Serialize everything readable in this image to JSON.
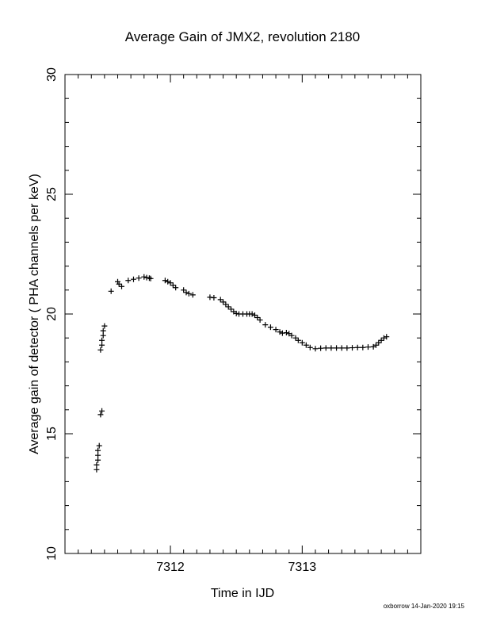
{
  "chart_data": {
    "type": "scatter",
    "title": "Average Gain of JMX2, revolution 2180",
    "xlabel": "Time in IJD",
    "ylabel": "Average gain of detector ( PHA channels per keV)",
    "xlim": [
      7311.2,
      7313.9
    ],
    "ylim": [
      10,
      30
    ],
    "x_ticks": [
      7312,
      7313
    ],
    "y_ticks": [
      10,
      15,
      20,
      25,
      30
    ],
    "marker": "+",
    "series": [
      {
        "points": [
          [
            7311.44,
            13.5
          ],
          [
            7311.44,
            13.7
          ],
          [
            7311.45,
            13.9
          ],
          [
            7311.45,
            14.1
          ],
          [
            7311.45,
            14.3
          ],
          [
            7311.46,
            14.5
          ],
          [
            7311.47,
            15.8
          ],
          [
            7311.48,
            15.95
          ],
          [
            7311.47,
            18.5
          ],
          [
            7311.48,
            18.7
          ],
          [
            7311.48,
            18.9
          ],
          [
            7311.49,
            19.1
          ],
          [
            7311.49,
            19.3
          ],
          [
            7311.5,
            19.5
          ],
          [
            7311.55,
            20.95
          ],
          [
            7311.6,
            21.35
          ],
          [
            7311.61,
            21.25
          ],
          [
            7311.63,
            21.15
          ],
          [
            7311.68,
            21.4
          ],
          [
            7311.72,
            21.45
          ],
          [
            7311.76,
            21.5
          ],
          [
            7311.8,
            21.55
          ],
          [
            7311.82,
            21.52
          ],
          [
            7311.84,
            21.5
          ],
          [
            7311.85,
            21.48
          ],
          [
            7311.96,
            21.4
          ],
          [
            7311.98,
            21.35
          ],
          [
            7312.0,
            21.3
          ],
          [
            7312.02,
            21.2
          ],
          [
            7312.04,
            21.1
          ],
          [
            7312.1,
            21.0
          ],
          [
            7312.12,
            20.9
          ],
          [
            7312.14,
            20.85
          ],
          [
            7312.17,
            20.8
          ],
          [
            7312.3,
            20.7
          ],
          [
            7312.33,
            20.68
          ],
          [
            7312.38,
            20.6
          ],
          [
            7312.4,
            20.5
          ],
          [
            7312.42,
            20.4
          ],
          [
            7312.44,
            20.3
          ],
          [
            7312.46,
            20.2
          ],
          [
            7312.48,
            20.1
          ],
          [
            7312.5,
            20.02
          ],
          [
            7312.52,
            20.0
          ],
          [
            7312.55,
            20.0
          ],
          [
            7312.58,
            20.0
          ],
          [
            7312.6,
            20.0
          ],
          [
            7312.62,
            20.0
          ],
          [
            7312.64,
            19.95
          ],
          [
            7312.66,
            19.85
          ],
          [
            7312.68,
            19.75
          ],
          [
            7312.72,
            19.55
          ],
          [
            7312.76,
            19.45
          ],
          [
            7312.8,
            19.35
          ],
          [
            7312.83,
            19.25
          ],
          [
            7312.85,
            19.2
          ],
          [
            7312.88,
            19.22
          ],
          [
            7312.9,
            19.18
          ],
          [
            7312.92,
            19.1
          ],
          [
            7312.95,
            19.0
          ],
          [
            7312.97,
            18.9
          ],
          [
            7313.0,
            18.8
          ],
          [
            7313.03,
            18.7
          ],
          [
            7313.06,
            18.6
          ],
          [
            7313.1,
            18.55
          ],
          [
            7313.14,
            18.57
          ],
          [
            7313.18,
            18.58
          ],
          [
            7313.22,
            18.58
          ],
          [
            7313.26,
            18.58
          ],
          [
            7313.3,
            18.58
          ],
          [
            7313.34,
            18.58
          ],
          [
            7313.38,
            18.59
          ],
          [
            7313.42,
            18.6
          ],
          [
            7313.46,
            18.6
          ],
          [
            7313.5,
            18.62
          ],
          [
            7313.54,
            18.63
          ],
          [
            7313.56,
            18.7
          ],
          [
            7313.58,
            18.8
          ],
          [
            7313.6,
            18.9
          ],
          [
            7313.62,
            19.0
          ],
          [
            7313.64,
            19.05
          ]
        ]
      }
    ]
  },
  "footer": {
    "stamp": "oxborrow 14-Jan-2020 19:15"
  }
}
